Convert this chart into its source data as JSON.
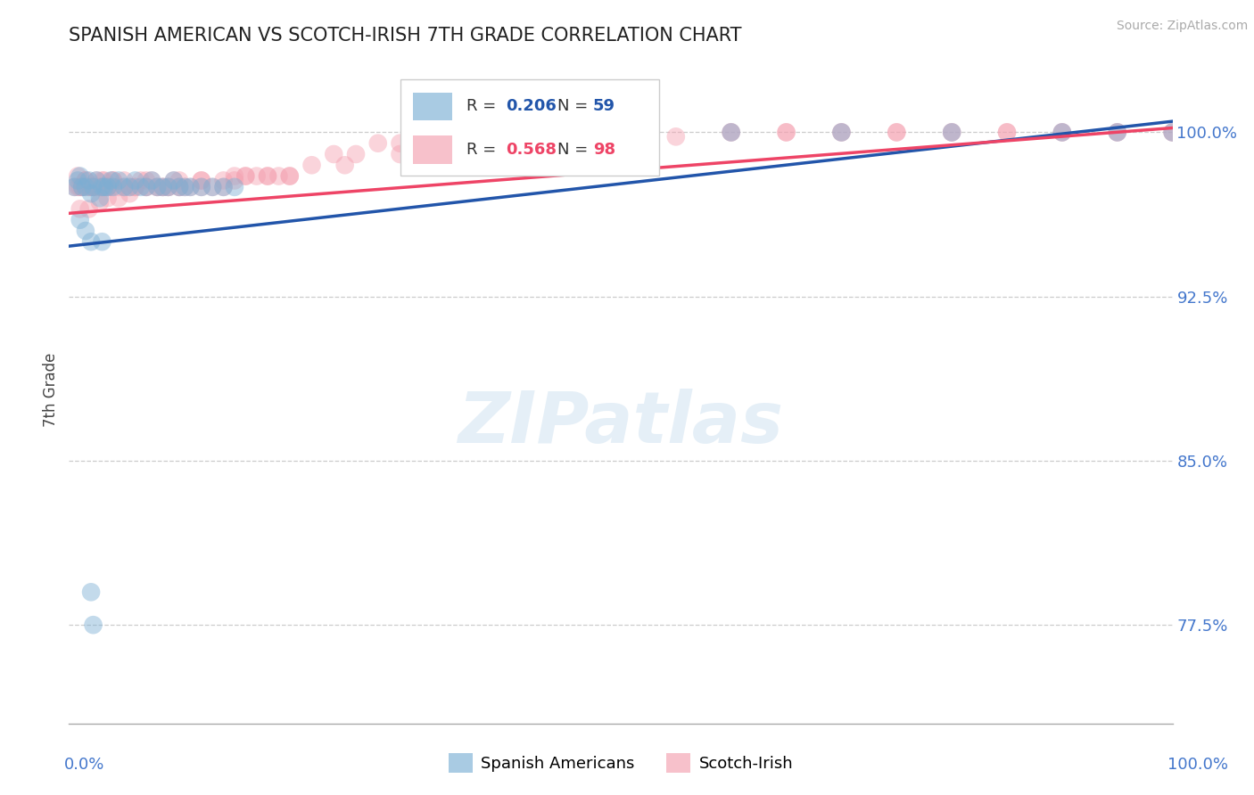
{
  "title": "SPANISH AMERICAN VS SCOTCH-IRISH 7TH GRADE CORRELATION CHART",
  "source_text": "Source: ZipAtlas.com",
  "ylabel": "7th Grade",
  "xlim": [
    0.0,
    100.0
  ],
  "ylim": [
    73.0,
    103.5
  ],
  "yticks": [
    77.5,
    85.0,
    92.5,
    100.0
  ],
  "ytick_labels": [
    "77.5%",
    "85.0%",
    "92.5%",
    "100.0%"
  ],
  "blue_R": "0.206",
  "blue_N": "59",
  "pink_R": "0.568",
  "pink_N": "98",
  "blue_color": "#7BAFD4",
  "pink_color": "#F4A0B0",
  "blue_line_color": "#2255AA",
  "pink_line_color": "#EE4466",
  "legend_label_sa": "Spanish Americans",
  "legend_label_si": "Scotch-Irish",
  "blue_trend": [
    0.0,
    94.8,
    100.0,
    100.5
  ],
  "pink_trend": [
    0.0,
    96.3,
    100.0,
    100.2
  ],
  "blue_scatter_x": [
    0.5,
    0.8,
    1.0,
    1.2,
    1.5,
    1.8,
    2.0,
    2.2,
    2.5,
    2.8,
    3.0,
    3.2,
    3.5,
    3.8,
    4.0,
    4.5,
    5.0,
    5.5,
    6.0,
    6.5,
    7.0,
    7.5,
    8.0,
    8.5,
    9.0,
    9.5,
    10.0,
    10.5,
    11.0,
    12.0,
    13.0,
    14.0,
    15.0,
    1.0,
    1.5,
    2.0,
    3.0,
    50.0,
    60.0,
    70.0,
    80.0,
    90.0,
    95.0,
    100.0,
    2.0,
    2.2
  ],
  "blue_scatter_y": [
    97.5,
    97.8,
    98.0,
    97.5,
    97.5,
    97.8,
    97.2,
    97.5,
    97.8,
    97.0,
    97.5,
    97.5,
    97.5,
    97.8,
    97.5,
    97.8,
    97.5,
    97.5,
    97.8,
    97.5,
    97.5,
    97.8,
    97.5,
    97.5,
    97.5,
    97.8,
    97.5,
    97.5,
    97.5,
    97.5,
    97.5,
    97.5,
    97.5,
    96.0,
    95.5,
    95.0,
    95.0,
    100.0,
    100.0,
    100.0,
    100.0,
    100.0,
    100.0,
    100.0,
    79.0,
    77.5
  ],
  "pink_scatter_x": [
    0.5,
    0.8,
    1.0,
    1.2,
    1.5,
    1.8,
    2.0,
    2.2,
    2.5,
    2.8,
    3.0,
    3.2,
    3.5,
    3.8,
    4.0,
    4.5,
    5.0,
    5.5,
    6.0,
    6.5,
    7.0,
    7.5,
    8.0,
    8.5,
    9.0,
    9.5,
    10.0,
    10.5,
    11.0,
    12.0,
    13.0,
    14.0,
    15.0,
    16.0,
    17.0,
    18.0,
    19.0,
    20.0,
    22.0,
    24.0,
    26.0,
    28.0,
    30.0,
    35.0,
    40.0,
    0.8,
    1.2,
    1.5,
    2.0,
    2.5,
    3.0,
    3.5,
    4.0,
    5.0,
    6.0,
    7.0,
    8.0,
    9.0,
    10.0,
    12.0,
    14.0,
    16.0,
    18.0,
    50.0,
    60.0,
    65.0,
    70.0,
    75.0,
    80.0,
    85.0,
    90.0,
    95.0,
    100.0,
    1.0,
    1.8,
    2.8,
    3.5,
    4.5,
    5.5,
    7.0,
    8.5,
    10.0,
    12.0,
    15.0,
    20.0,
    25.0,
    30.0,
    35.0,
    40.0,
    45.0,
    50.0,
    55.0,
    60.0,
    65.0,
    70.0,
    75.0,
    80.0,
    85.0,
    90.0,
    95.0,
    100.0
  ],
  "pink_scatter_y": [
    97.5,
    97.5,
    97.5,
    97.5,
    97.8,
    97.5,
    97.5,
    97.5,
    97.8,
    97.5,
    97.5,
    97.8,
    97.5,
    97.5,
    97.8,
    97.5,
    97.8,
    97.5,
    97.5,
    97.8,
    97.5,
    97.8,
    97.5,
    97.5,
    97.5,
    97.8,
    97.5,
    97.5,
    97.5,
    97.8,
    97.5,
    97.5,
    97.8,
    98.0,
    98.0,
    98.0,
    98.0,
    98.0,
    98.5,
    99.0,
    99.0,
    99.5,
    99.5,
    99.5,
    99.5,
    98.0,
    97.5,
    97.8,
    97.5,
    97.5,
    97.8,
    97.5,
    97.8,
    97.5,
    97.5,
    97.8,
    97.5,
    97.5,
    97.8,
    97.5,
    97.8,
    98.0,
    98.0,
    100.0,
    100.0,
    100.0,
    100.0,
    100.0,
    100.0,
    100.0,
    100.0,
    100.0,
    100.0,
    96.5,
    96.5,
    96.8,
    97.0,
    97.0,
    97.2,
    97.5,
    97.5,
    97.5,
    97.8,
    98.0,
    98.0,
    98.5,
    99.0,
    99.0,
    99.5,
    99.5,
    99.5,
    99.8,
    100.0,
    100.0,
    100.0,
    100.0,
    100.0,
    100.0,
    100.0,
    100.0,
    100.0
  ],
  "watermark_text": "ZIPatlas",
  "background_color": "#ffffff",
  "grid_color": "#cccccc",
  "axis_label_color": "#4477CC",
  "title_color": "#222222"
}
